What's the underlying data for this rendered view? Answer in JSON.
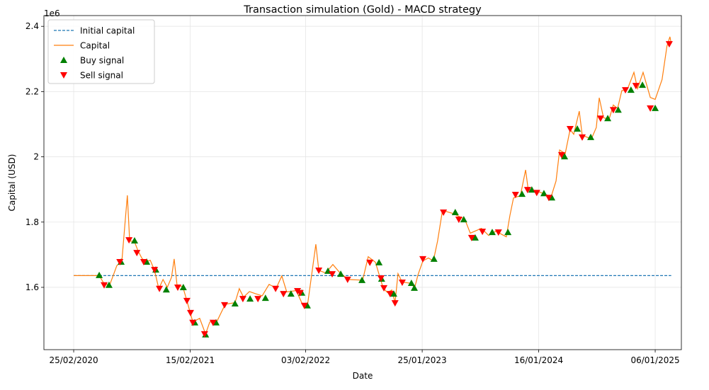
{
  "chart_data": {
    "type": "line",
    "title": "Transaction simulation (Gold) - MACD strategy",
    "x_label": "Date",
    "y_label": "Capital (USD)",
    "y_offset_label": "1e6",
    "grid": true,
    "legend_loc": "upper left",
    "xlim": [
      "2019-11-26",
      "2025-03-27"
    ],
    "xticks": [
      {
        "value": "2020-02-25",
        "label": "25/02/2020"
      },
      {
        "value": "2021-02-15",
        "label": "15/02/2021"
      },
      {
        "value": "2022-02-03",
        "label": "03/02/2022"
      },
      {
        "value": "2023-01-25",
        "label": "25/01/2023"
      },
      {
        "value": "2024-01-16",
        "label": "16/01/2024"
      },
      {
        "value": "2025-01-06",
        "label": "06/01/2025"
      }
    ],
    "ylim": [
      1.409,
      2.433
    ],
    "yticks": [
      1.6,
      1.8,
      2.0,
      2.2,
      2.4
    ],
    "series": [
      {
        "name": "Initial capital",
        "type": "line",
        "dash": true,
        "color": "#1f77b4",
        "x": [
          "2020-02-25",
          "2025-02-24"
        ],
        "values": [
          1.636,
          1.636
        ]
      },
      {
        "name": "Capital",
        "type": "line",
        "dash": false,
        "color": "#ff7f0e",
        "x": [
          "2020-02-25",
          "2020-05-13",
          "2020-05-28",
          "2020-06-14",
          "2020-07-06",
          "2020-07-21",
          "2020-07-30",
          "2020-08-07",
          "2020-08-14",
          "2020-08-29",
          "2020-09-09",
          "2020-09-20",
          "2020-10-01",
          "2020-10-16",
          "2020-10-29",
          "2020-11-11",
          "2020-11-24",
          "2020-12-07",
          "2020-12-20",
          "2020-12-28",
          "2021-01-06",
          "2021-01-23",
          "2021-02-05",
          "2021-02-14",
          "2021-02-23",
          "2021-03-16",
          "2021-04-03",
          "2021-04-16",
          "2021-05-07",
          "2021-06-02",
          "2021-07-02",
          "2021-07-15",
          "2021-07-28",
          "2021-08-15",
          "2021-09-01",
          "2021-09-23",
          "2021-10-14",
          "2021-11-05",
          "2021-11-22",
          "2021-12-07",
          "2022-01-05",
          "2022-01-26",
          "2022-02-08",
          "2022-03-06",
          "2022-03-15",
          "2022-04-05",
          "2022-04-27",
          "2022-05-19",
          "2022-06-14",
          "2022-07-27",
          "2022-08-13",
          "2022-09-04",
          "2022-09-19",
          "2022-09-28",
          "2022-10-11",
          "2022-10-24",
          "2022-11-03",
          "2022-11-12",
          "2022-11-25",
          "2022-12-25",
          "2023-01-01",
          "2023-01-12",
          "2023-01-27",
          "2023-02-13",
          "2023-02-28",
          "2023-03-13",
          "2023-03-28",
          "2023-04-30",
          "2023-06-04",
          "2023-06-21",
          "2023-07-25",
          "2023-08-16",
          "2023-09-07",
          "2023-10-09",
          "2023-10-20",
          "2023-10-31",
          "2023-11-21",
          "2023-12-07",
          "2023-12-15",
          "2024-01-19",
          "2024-02-23",
          "2024-03-09",
          "2024-03-20",
          "2024-04-06",
          "2024-04-21",
          "2024-05-02",
          "2024-05-19",
          "2024-05-28",
          "2024-06-25",
          "2024-07-10",
          "2024-07-19",
          "2024-08-01",
          "2024-08-18",
          "2024-08-31",
          "2024-09-13",
          "2024-09-26",
          "2024-10-13",
          "2024-11-02",
          "2024-11-13",
          "2024-11-30",
          "2024-12-22",
          "2025-01-06",
          "2025-01-27",
          "2025-02-11",
          "2025-02-20",
          "2025-02-24"
        ],
        "values": [
          1.636,
          1.636,
          1.611,
          1.607,
          1.667,
          1.678,
          1.787,
          1.882,
          1.743,
          1.739,
          1.711,
          1.69,
          1.678,
          1.683,
          1.652,
          1.596,
          1.624,
          1.6,
          1.631,
          1.687,
          1.605,
          1.603,
          1.559,
          1.526,
          1.494,
          1.505,
          1.457,
          1.494,
          1.494,
          1.548,
          1.553,
          1.596,
          1.57,
          1.587,
          1.581,
          1.574,
          1.609,
          1.598,
          1.635,
          1.586,
          1.59,
          1.544,
          1.542,
          1.732,
          1.652,
          1.644,
          1.67,
          1.644,
          1.624,
          1.622,
          1.694,
          1.677,
          1.627,
          1.597,
          1.584,
          1.592,
          1.553,
          1.642,
          1.616,
          1.612,
          1.595,
          1.638,
          1.681,
          1.69,
          1.681,
          1.742,
          1.836,
          1.826,
          1.809,
          1.766,
          1.781,
          1.759,
          1.772,
          1.755,
          1.82,
          1.874,
          1.881,
          1.96,
          1.899,
          1.892,
          1.878,
          1.926,
          2.021,
          2.01,
          2.084,
          2.069,
          2.14,
          2.066,
          2.055,
          2.09,
          2.181,
          2.12,
          2.115,
          2.159,
          2.148,
          2.203,
          2.207,
          2.259,
          2.209,
          2.259,
          2.182,
          2.176,
          2.237,
          2.34,
          2.368,
          2.347
        ]
      },
      {
        "name": "Buy signal",
        "type": "scatter",
        "marker": "up",
        "color": "#008000",
        "x": [
          "2020-05-13",
          "2020-06-12",
          "2020-07-19",
          "2020-08-29",
          "2020-10-05",
          "2020-11-02",
          "2020-12-04",
          "2021-01-25",
          "2021-03-01",
          "2021-04-03",
          "2021-05-05",
          "2021-07-02",
          "2021-08-17",
          "2021-10-03",
          "2021-12-20",
          "2022-01-22",
          "2022-02-08",
          "2022-04-12",
          "2022-05-21",
          "2022-07-25",
          "2022-09-15",
          "2022-09-23",
          "2022-10-30",
          "2022-12-23",
          "2023-01-01",
          "2023-03-02",
          "2023-05-06",
          "2023-06-01",
          "2023-07-06",
          "2023-08-27",
          "2023-10-14",
          "2023-11-26",
          "2023-12-26",
          "2024-02-01",
          "2024-02-25",
          "2024-04-04",
          "2024-05-13",
          "2024-06-23",
          "2024-08-14",
          "2024-09-15",
          "2024-10-24",
          "2024-11-28",
          "2025-01-06"
        ],
        "values": [
          1.637,
          1.607,
          1.678,
          1.743,
          1.678,
          1.654,
          1.593,
          1.6,
          1.492,
          1.455,
          1.492,
          1.55,
          1.565,
          1.567,
          1.58,
          1.583,
          1.544,
          1.65,
          1.641,
          1.622,
          1.676,
          1.626,
          1.58,
          1.613,
          1.598,
          1.687,
          1.83,
          1.808,
          1.752,
          1.769,
          1.769,
          1.886,
          1.899,
          1.888,
          1.875,
          2.001,
          2.086,
          2.06,
          2.118,
          2.144,
          2.205,
          2.22,
          2.149
        ]
      },
      {
        "name": "Sell signal",
        "type": "scatter",
        "marker": "down",
        "color": "#ff0000",
        "x": [
          "2020-05-28",
          "2020-07-15",
          "2020-08-12",
          "2020-09-05",
          "2020-09-26",
          "2020-10-29",
          "2020-11-13",
          "2021-01-08",
          "2021-02-05",
          "2021-02-16",
          "2021-02-23",
          "2021-03-31",
          "2021-04-26",
          "2021-05-31",
          "2021-07-26",
          "2021-09-10",
          "2021-11-03",
          "2021-11-27",
          "2022-01-09",
          "2022-01-17",
          "2022-01-30",
          "2022-03-15",
          "2022-04-25",
          "2022-06-11",
          "2022-08-18",
          "2022-09-21",
          "2022-09-30",
          "2022-10-19",
          "2022-11-03",
          "2022-11-25",
          "2023-01-27",
          "2023-03-31",
          "2023-05-17",
          "2023-06-25",
          "2023-07-28",
          "2023-09-15",
          "2023-11-06",
          "2023-12-13",
          "2024-01-10",
          "2024-02-16",
          "2024-03-26",
          "2024-04-21",
          "2024-05-28",
          "2024-07-23",
          "2024-08-31",
          "2024-10-07",
          "2024-11-08",
          "2024-12-22",
          "2025-02-18"
        ],
        "values": [
          1.607,
          1.678,
          1.745,
          1.706,
          1.678,
          1.654,
          1.596,
          1.6,
          1.559,
          1.522,
          1.492,
          1.457,
          1.492,
          1.546,
          1.565,
          1.565,
          1.596,
          1.58,
          1.589,
          1.583,
          1.544,
          1.652,
          1.641,
          1.624,
          1.676,
          1.628,
          1.598,
          1.58,
          1.552,
          1.615,
          1.687,
          1.83,
          1.808,
          1.752,
          1.771,
          1.769,
          1.884,
          1.899,
          1.89,
          1.875,
          2.006,
          2.086,
          2.06,
          2.118,
          2.144,
          2.205,
          2.218,
          2.149,
          2.346
        ]
      }
    ]
  }
}
